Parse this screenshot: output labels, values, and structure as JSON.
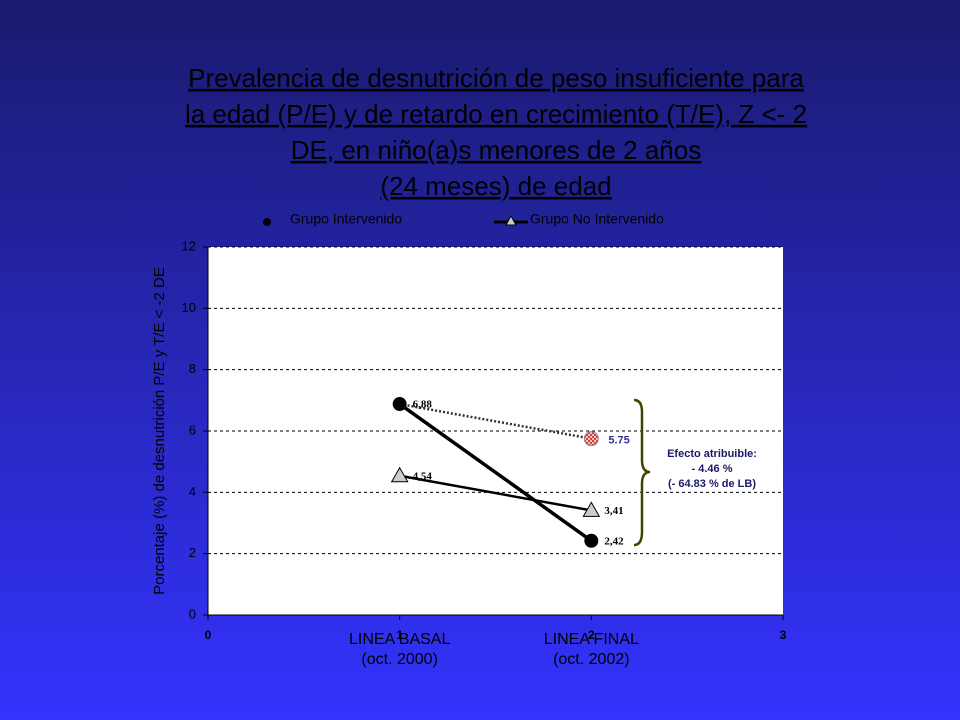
{
  "chart_data": {
    "type": "line",
    "title": [
      "Prevalencia de desnutrición de peso insuficiente para",
      "la edad (P/E) y de retardo en crecimiento (T/E),  Z <- 2",
      "DE, en niño(a)s menores de 2 años",
      "(24 meses) de edad"
    ],
    "y_label": "Porcentaje (%) de desnutrición P/E y T/E < -2 DE",
    "xlim": [
      0,
      3
    ],
    "xticks": [
      0,
      1,
      2,
      3
    ],
    "ylim": [
      0,
      12
    ],
    "yticks": [
      0,
      2,
      4,
      6,
      8,
      10,
      12
    ],
    "grid": true,
    "period_labels": [
      [
        "LINEA BASAL",
        "(oct. 2000)"
      ],
      [
        "LINEA FINAL",
        "(oct. 2002)"
      ]
    ],
    "series": [
      {
        "name": "Grupo Intervenido",
        "color": "#000000",
        "marker": "circle",
        "x": [
          1,
          2
        ],
        "values": [
          6.88,
          2.42
        ],
        "value_labels": [
          "6,88",
          "2,42"
        ]
      },
      {
        "name": "Grupo No Intervenido",
        "color": "#000000",
        "marker": "triangle",
        "x": [
          1,
          2
        ],
        "values": [
          4.54,
          3.41
        ],
        "value_labels": [
          "4,54",
          "3,41"
        ]
      }
    ],
    "projection": {
      "x": [
        1,
        2
      ],
      "values": [
        6.88,
        5.75
      ]
    },
    "annotation": [
      "Efecto atribuible:",
      "- 4.46 %",
      "(- 64.83 % de LB)"
    ]
  }
}
